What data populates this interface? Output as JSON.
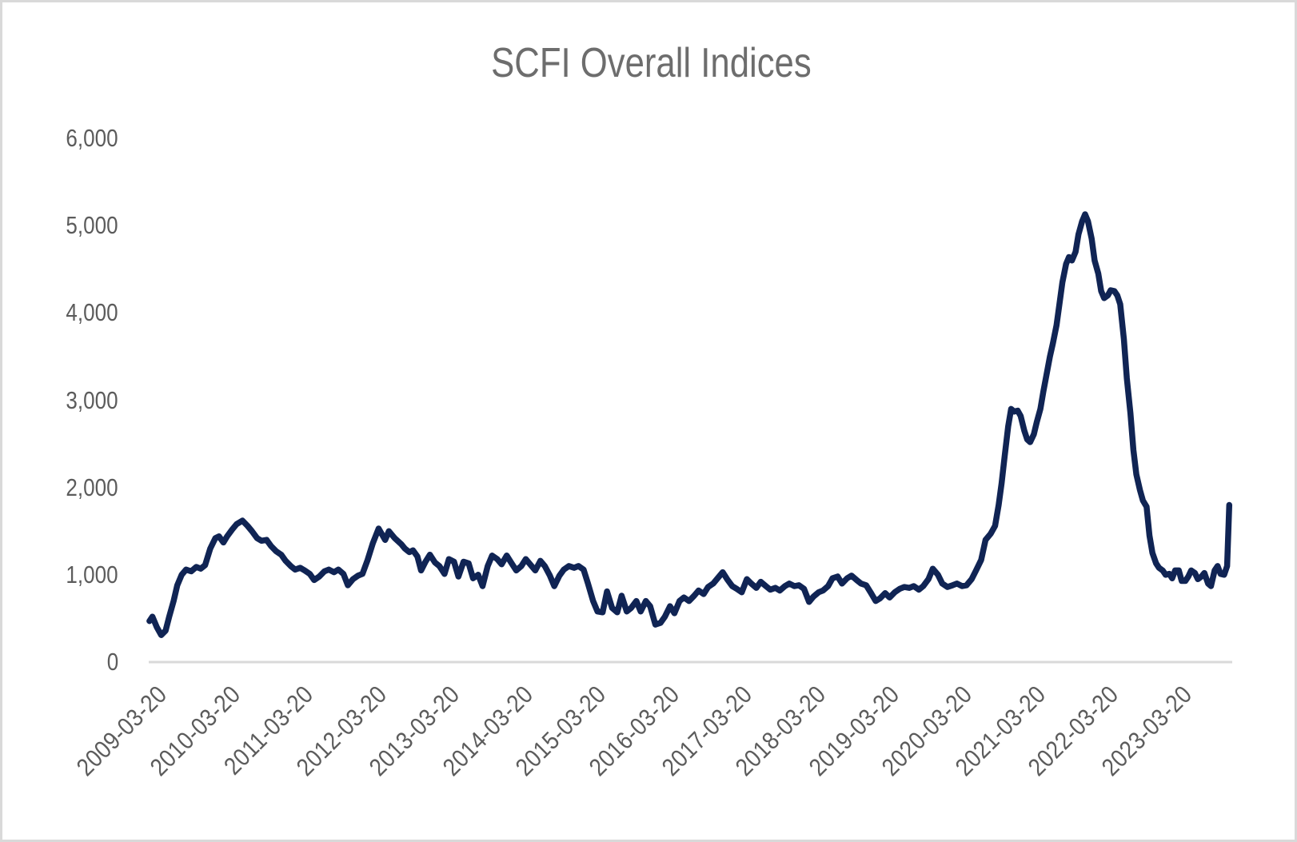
{
  "window": {
    "background_color": "#ffffff",
    "frame_border_color": "#d9d9d9"
  },
  "chart_data": {
    "type": "line",
    "title": "SCFI Overall Indices",
    "title_color": "#6d6d6d",
    "label_color": "#5c5c5c",
    "axis_line_color": "#d9d9d9",
    "grid": false,
    "legend": "none",
    "xlim": [
      2009.22,
      2024.02
    ],
    "ylim": [
      0,
      6000
    ],
    "y_ticks": [
      {
        "label": "0",
        "v": 0
      },
      {
        "label": "1,000",
        "v": 1000
      },
      {
        "label": "2,000",
        "v": 2000
      },
      {
        "label": "3,000",
        "v": 3000
      },
      {
        "label": "4,000",
        "v": 4000
      },
      {
        "label": "5,000",
        "v": 5000
      },
      {
        "label": "6,000",
        "v": 6000
      }
    ],
    "x_ticks": [
      {
        "label": "2009-03-20",
        "t": 2009.22
      },
      {
        "label": "2010-03-20",
        "t": 2010.22
      },
      {
        "label": "2011-03-20",
        "t": 2011.22
      },
      {
        "label": "2012-03-20",
        "t": 2012.22
      },
      {
        "label": "2013-03-20",
        "t": 2013.22
      },
      {
        "label": "2014-03-20",
        "t": 2014.22
      },
      {
        "label": "2015-03-20",
        "t": 2015.22
      },
      {
        "label": "2016-03-20",
        "t": 2016.22
      },
      {
        "label": "2017-03-20",
        "t": 2017.22
      },
      {
        "label": "2018-03-20",
        "t": 2018.22
      },
      {
        "label": "2019-03-20",
        "t": 2019.22
      },
      {
        "label": "2020-03-20",
        "t": 2020.22
      },
      {
        "label": "2021-03-20",
        "t": 2021.22
      },
      {
        "label": "2022-03-20",
        "t": 2022.22
      },
      {
        "label": "2023-03-20",
        "t": 2023.22
      }
    ],
    "series": [
      {
        "name": "SCFI Overall Index",
        "color": "#102454",
        "stroke_width": 7.5,
        "points": [
          [
            2009.23,
            470
          ],
          [
            2009.27,
            520
          ],
          [
            2009.33,
            400
          ],
          [
            2009.39,
            310
          ],
          [
            2009.45,
            360
          ],
          [
            2009.5,
            520
          ],
          [
            2009.56,
            700
          ],
          [
            2009.61,
            880
          ],
          [
            2009.67,
            1000
          ],
          [
            2009.73,
            1060
          ],
          [
            2009.8,
            1040
          ],
          [
            2009.87,
            1090
          ],
          [
            2009.93,
            1070
          ],
          [
            2009.99,
            1110
          ],
          [
            2010.06,
            1300
          ],
          [
            2010.13,
            1420
          ],
          [
            2010.18,
            1440
          ],
          [
            2010.24,
            1370
          ],
          [
            2010.29,
            1440
          ],
          [
            2010.36,
            1520
          ],
          [
            2010.42,
            1580
          ],
          [
            2010.5,
            1620
          ],
          [
            2010.57,
            1560
          ],
          [
            2010.63,
            1500
          ],
          [
            2010.7,
            1420
          ],
          [
            2010.76,
            1390
          ],
          [
            2010.83,
            1400
          ],
          [
            2010.89,
            1330
          ],
          [
            2010.96,
            1270
          ],
          [
            2011.03,
            1230
          ],
          [
            2011.09,
            1160
          ],
          [
            2011.16,
            1100
          ],
          [
            2011.22,
            1060
          ],
          [
            2011.29,
            1080
          ],
          [
            2011.35,
            1050
          ],
          [
            2011.42,
            1010
          ],
          [
            2011.48,
            940
          ],
          [
            2011.55,
            980
          ],
          [
            2011.62,
            1040
          ],
          [
            2011.68,
            1060
          ],
          [
            2011.75,
            1030
          ],
          [
            2011.81,
            1060
          ],
          [
            2011.88,
            1010
          ],
          [
            2011.94,
            880
          ],
          [
            2012.01,
            950
          ],
          [
            2012.08,
            990
          ],
          [
            2012.14,
            1010
          ],
          [
            2012.21,
            1170
          ],
          [
            2012.28,
            1360
          ],
          [
            2012.36,
            1530
          ],
          [
            2012.45,
            1400
          ],
          [
            2012.5,
            1500
          ],
          [
            2012.58,
            1420
          ],
          [
            2012.67,
            1350
          ],
          [
            2012.72,
            1300
          ],
          [
            2012.78,
            1260
          ],
          [
            2012.83,
            1280
          ],
          [
            2012.89,
            1210
          ],
          [
            2012.94,
            1050
          ],
          [
            2013.0,
            1150
          ],
          [
            2013.06,
            1230
          ],
          [
            2013.13,
            1140
          ],
          [
            2013.19,
            1100
          ],
          [
            2013.26,
            1010
          ],
          [
            2013.32,
            1180
          ],
          [
            2013.39,
            1150
          ],
          [
            2013.45,
            980
          ],
          [
            2013.52,
            1150
          ],
          [
            2013.59,
            1130
          ],
          [
            2013.65,
            960
          ],
          [
            2013.72,
            1000
          ],
          [
            2013.78,
            870
          ],
          [
            2013.85,
            1100
          ],
          [
            2013.91,
            1220
          ],
          [
            2013.98,
            1180
          ],
          [
            2014.04,
            1120
          ],
          [
            2014.11,
            1220
          ],
          [
            2014.17,
            1140
          ],
          [
            2014.24,
            1050
          ],
          [
            2014.31,
            1100
          ],
          [
            2014.37,
            1180
          ],
          [
            2014.44,
            1110
          ],
          [
            2014.5,
            1050
          ],
          [
            2014.57,
            1160
          ],
          [
            2014.63,
            1100
          ],
          [
            2014.7,
            990
          ],
          [
            2014.76,
            870
          ],
          [
            2014.83,
            990
          ],
          [
            2014.89,
            1060
          ],
          [
            2014.96,
            1100
          ],
          [
            2015.03,
            1080
          ],
          [
            2015.09,
            1100
          ],
          [
            2015.16,
            1060
          ],
          [
            2015.22,
            900
          ],
          [
            2015.29,
            700
          ],
          [
            2015.35,
            580
          ],
          [
            2015.42,
            570
          ],
          [
            2015.48,
            810
          ],
          [
            2015.55,
            620
          ],
          [
            2015.62,
            570
          ],
          [
            2015.68,
            760
          ],
          [
            2015.75,
            580
          ],
          [
            2015.81,
            620
          ],
          [
            2015.88,
            700
          ],
          [
            2015.94,
            580
          ],
          [
            2016.01,
            700
          ],
          [
            2016.07,
            640
          ],
          [
            2016.14,
            430
          ],
          [
            2016.21,
            450
          ],
          [
            2016.27,
            520
          ],
          [
            2016.34,
            640
          ],
          [
            2016.4,
            560
          ],
          [
            2016.47,
            700
          ],
          [
            2016.53,
            740
          ],
          [
            2016.6,
            700
          ],
          [
            2016.67,
            760
          ],
          [
            2016.73,
            820
          ],
          [
            2016.8,
            780
          ],
          [
            2016.86,
            860
          ],
          [
            2016.93,
            900
          ],
          [
            2016.99,
            960
          ],
          [
            2017.06,
            1030
          ],
          [
            2017.12,
            950
          ],
          [
            2017.19,
            870
          ],
          [
            2017.25,
            840
          ],
          [
            2017.32,
            800
          ],
          [
            2017.39,
            950
          ],
          [
            2017.45,
            900
          ],
          [
            2017.52,
            850
          ],
          [
            2017.58,
            920
          ],
          [
            2017.65,
            870
          ],
          [
            2017.71,
            830
          ],
          [
            2017.78,
            850
          ],
          [
            2017.84,
            820
          ],
          [
            2017.91,
            870
          ],
          [
            2017.97,
            900
          ],
          [
            2018.04,
            870
          ],
          [
            2018.1,
            880
          ],
          [
            2018.17,
            840
          ],
          [
            2018.24,
            690
          ],
          [
            2018.3,
            750
          ],
          [
            2018.37,
            800
          ],
          [
            2018.43,
            820
          ],
          [
            2018.5,
            870
          ],
          [
            2018.56,
            960
          ],
          [
            2018.63,
            980
          ],
          [
            2018.69,
            900
          ],
          [
            2018.76,
            960
          ],
          [
            2018.82,
            990
          ],
          [
            2018.89,
            940
          ],
          [
            2018.95,
            900
          ],
          [
            2019.02,
            880
          ],
          [
            2019.08,
            800
          ],
          [
            2019.15,
            700
          ],
          [
            2019.21,
            730
          ],
          [
            2019.28,
            790
          ],
          [
            2019.34,
            740
          ],
          [
            2019.41,
            800
          ],
          [
            2019.48,
            840
          ],
          [
            2019.54,
            860
          ],
          [
            2019.61,
            850
          ],
          [
            2019.67,
            870
          ],
          [
            2019.74,
            830
          ],
          [
            2019.8,
            870
          ],
          [
            2019.87,
            950
          ],
          [
            2019.93,
            1070
          ],
          [
            2020.0,
            1000
          ],
          [
            2020.06,
            900
          ],
          [
            2020.13,
            860
          ],
          [
            2020.2,
            880
          ],
          [
            2020.26,
            900
          ],
          [
            2020.33,
            870
          ],
          [
            2020.39,
            880
          ],
          [
            2020.46,
            950
          ],
          [
            2020.52,
            1050
          ],
          [
            2020.59,
            1170
          ],
          [
            2020.65,
            1400
          ],
          [
            2020.72,
            1470
          ],
          [
            2020.78,
            1560
          ],
          [
            2020.83,
            1800
          ],
          [
            2020.87,
            2050
          ],
          [
            2020.91,
            2350
          ],
          [
            2020.96,
            2700
          ],
          [
            2021.0,
            2900
          ],
          [
            2021.04,
            2870
          ],
          [
            2021.09,
            2880
          ],
          [
            2021.13,
            2820
          ],
          [
            2021.18,
            2650
          ],
          [
            2021.22,
            2550
          ],
          [
            2021.26,
            2520
          ],
          [
            2021.31,
            2610
          ],
          [
            2021.35,
            2750
          ],
          [
            2021.4,
            2900
          ],
          [
            2021.44,
            3100
          ],
          [
            2021.48,
            3280
          ],
          [
            2021.53,
            3500
          ],
          [
            2021.57,
            3650
          ],
          [
            2021.62,
            3860
          ],
          [
            2021.66,
            4100
          ],
          [
            2021.7,
            4350
          ],
          [
            2021.75,
            4560
          ],
          [
            2021.79,
            4640
          ],
          [
            2021.83,
            4600
          ],
          [
            2021.88,
            4700
          ],
          [
            2021.92,
            4900
          ],
          [
            2021.97,
            5050
          ],
          [
            2022.01,
            5130
          ],
          [
            2022.05,
            5050
          ],
          [
            2022.1,
            4850
          ],
          [
            2022.14,
            4600
          ],
          [
            2022.19,
            4450
          ],
          [
            2022.23,
            4250
          ],
          [
            2022.27,
            4170
          ],
          [
            2022.32,
            4200
          ],
          [
            2022.36,
            4260
          ],
          [
            2022.41,
            4250
          ],
          [
            2022.45,
            4200
          ],
          [
            2022.49,
            4100
          ],
          [
            2022.54,
            3700
          ],
          [
            2022.58,
            3250
          ],
          [
            2022.63,
            2850
          ],
          [
            2022.67,
            2430
          ],
          [
            2022.71,
            2150
          ],
          [
            2022.76,
            1970
          ],
          [
            2022.8,
            1850
          ],
          [
            2022.85,
            1780
          ],
          [
            2022.89,
            1450
          ],
          [
            2022.93,
            1250
          ],
          [
            2022.98,
            1130
          ],
          [
            2023.02,
            1080
          ],
          [
            2023.07,
            1050
          ],
          [
            2023.11,
            1000
          ],
          [
            2023.16,
            1010
          ],
          [
            2023.2,
            960
          ],
          [
            2023.24,
            1050
          ],
          [
            2023.29,
            1050
          ],
          [
            2023.33,
            930
          ],
          [
            2023.38,
            930
          ],
          [
            2023.42,
            980
          ],
          [
            2023.46,
            1050
          ],
          [
            2023.51,
            1020
          ],
          [
            2023.55,
            950
          ],
          [
            2023.6,
            980
          ],
          [
            2023.64,
            1020
          ],
          [
            2023.69,
            900
          ],
          [
            2023.73,
            870
          ],
          [
            2023.78,
            1050
          ],
          [
            2023.82,
            1100
          ],
          [
            2023.86,
            1010
          ],
          [
            2023.91,
            1000
          ],
          [
            2023.95,
            1100
          ],
          [
            2023.98,
            1800
          ]
        ]
      }
    ]
  }
}
